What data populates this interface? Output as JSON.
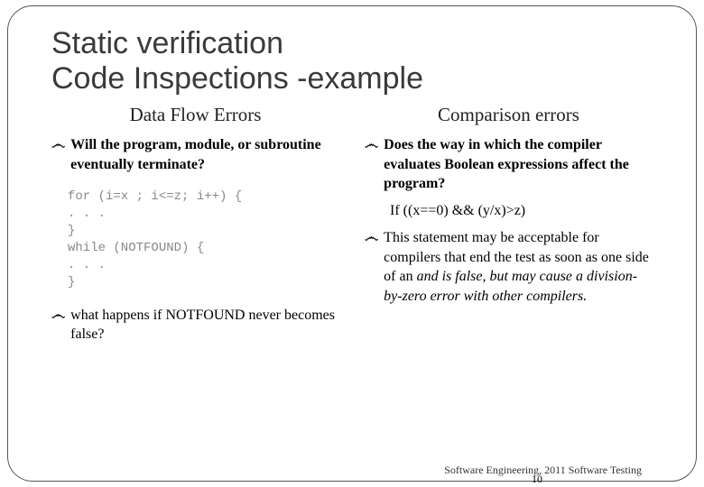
{
  "title_line1": "Static verification",
  "title_line2": "Code Inspections -example",
  "left": {
    "heading": "Data Flow Errors",
    "bullet1": "Will the program, module, or subroutine eventually terminate?",
    "code": "for (i=x ; i<=z; i++) {\n. . .\n}\nwhile (NOTFOUND) {\n. . .\n}",
    "bullet2": "what happens if NOTFOUND never becomes false?"
  },
  "right": {
    "heading": "Comparison errors",
    "bullet1": "Does the way in which the compiler evaluates Boolean expressions affect the program?",
    "expr": "If ((x==0) && (y/x)>z)",
    "bullet2_a": "This statement  may be acceptable for compilers that end the test as soon as one side of an ",
    "bullet2_b": "and is false, but may cause a division-by-zero error with other compilers."
  },
  "footer": "Software Engineering,   2011 Software  Testing",
  "page_num": "10",
  "bullet_glyph": "෴",
  "colors": {
    "title": "#3a3a3a",
    "code": "#888888",
    "border": "#555555"
  }
}
